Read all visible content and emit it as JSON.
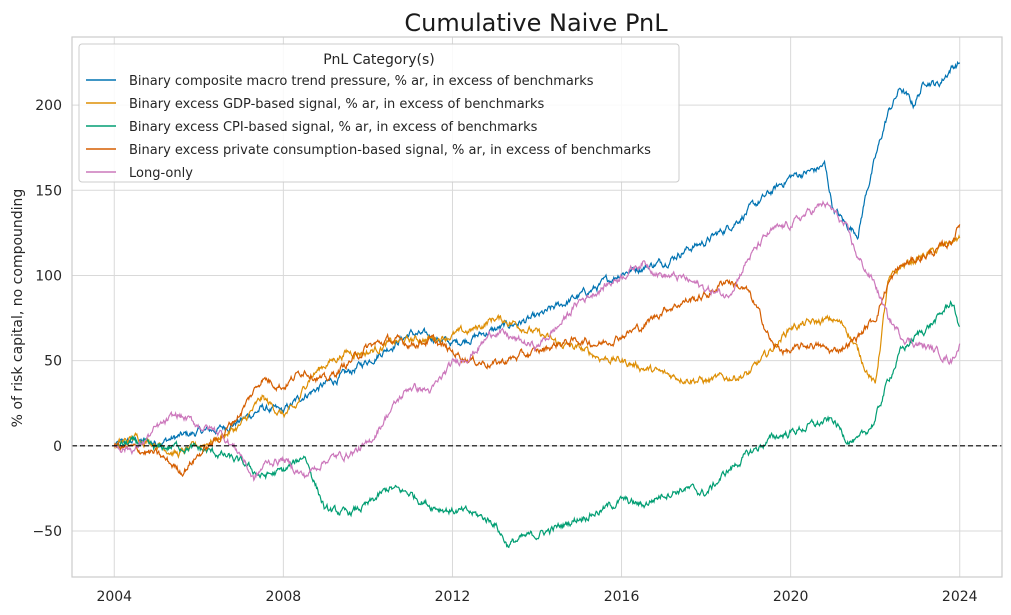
{
  "chart_data": {
    "type": "line",
    "title": "Cumulative Naive PnL",
    "xlabel": "",
    "ylabel": "% of risk capital, no compounding",
    "xlim": [
      2003.0,
      2025.0
    ],
    "ylim": [
      -77,
      240
    ],
    "x_ticks": [
      {
        "value": 2004,
        "label": "2004"
      },
      {
        "value": 2008,
        "label": "2008"
      },
      {
        "value": 2012,
        "label": "2012"
      },
      {
        "value": 2016,
        "label": "2016"
      },
      {
        "value": 2020,
        "label": "2020"
      },
      {
        "value": 2024,
        "label": "2024"
      }
    ],
    "y_ticks": [
      {
        "value": -50,
        "label": "−50"
      },
      {
        "value": 0,
        "label": "0"
      },
      {
        "value": 50,
        "label": "50"
      },
      {
        "value": 100,
        "label": "100"
      },
      {
        "value": 150,
        "label": "150"
      },
      {
        "value": 200,
        "label": "200"
      }
    ],
    "grid": true,
    "zero_line": {
      "value": 0,
      "style": "dashed",
      "color": "#000000"
    },
    "legend": {
      "title": "PnL Category(s)",
      "placement": "top-left"
    },
    "series": [
      {
        "name": "Binary composite macro trend pressure, % ar, in excess of benchmarks",
        "color": "#0173b2",
        "points": [
          [
            2004.0,
            0
          ],
          [
            2004.5,
            3
          ],
          [
            2005.0,
            2
          ],
          [
            2005.5,
            5
          ],
          [
            2006.0,
            8
          ],
          [
            2006.5,
            10
          ],
          [
            2007.0,
            15
          ],
          [
            2007.5,
            22
          ],
          [
            2008.0,
            20
          ],
          [
            2008.5,
            30
          ],
          [
            2009.0,
            36
          ],
          [
            2009.5,
            42
          ],
          [
            2010.0,
            50
          ],
          [
            2010.5,
            58
          ],
          [
            2011.0,
            66
          ],
          [
            2011.5,
            64
          ],
          [
            2012.0,
            60
          ],
          [
            2012.5,
            64
          ],
          [
            2013.0,
            68
          ],
          [
            2013.5,
            72
          ],
          [
            2014.0,
            75
          ],
          [
            2014.5,
            82
          ],
          [
            2015.0,
            88
          ],
          [
            2015.5,
            94
          ],
          [
            2016.0,
            102
          ],
          [
            2016.5,
            105
          ],
          [
            2017.0,
            108
          ],
          [
            2017.5,
            115
          ],
          [
            2018.0,
            120
          ],
          [
            2018.5,
            128
          ],
          [
            2019.0,
            138
          ],
          [
            2019.5,
            148
          ],
          [
            2020.0,
            158
          ],
          [
            2020.3,
            160
          ],
          [
            2020.6,
            162
          ],
          [
            2020.8,
            165
          ],
          [
            2021.0,
            140
          ],
          [
            2021.3,
            130
          ],
          [
            2021.6,
            125
          ],
          [
            2021.8,
            150
          ],
          [
            2022.0,
            168
          ],
          [
            2022.3,
            195
          ],
          [
            2022.6,
            210
          ],
          [
            2022.9,
            200
          ],
          [
            2023.2,
            215
          ],
          [
            2023.5,
            212
          ],
          [
            2023.8,
            222
          ],
          [
            2024.0,
            225
          ]
        ]
      },
      {
        "name": "Binary excess GDP-based signal, % ar, in excess of benchmarks",
        "color": "#de8f05",
        "points": [
          [
            2004.0,
            0
          ],
          [
            2004.5,
            5
          ],
          [
            2005.0,
            2
          ],
          [
            2005.5,
            -5
          ],
          [
            2006.0,
            0
          ],
          [
            2006.5,
            5
          ],
          [
            2007.0,
            12
          ],
          [
            2007.5,
            28
          ],
          [
            2008.0,
            18
          ],
          [
            2008.3,
            22
          ],
          [
            2008.6,
            40
          ],
          [
            2009.0,
            48
          ],
          [
            2009.5,
            55
          ],
          [
            2010.0,
            55
          ],
          [
            2010.5,
            60
          ],
          [
            2011.0,
            62
          ],
          [
            2011.5,
            63
          ],
          [
            2012.0,
            65
          ],
          [
            2012.5,
            68
          ],
          [
            2013.0,
            75
          ],
          [
            2013.5,
            72
          ],
          [
            2014.0,
            66
          ],
          [
            2014.5,
            60
          ],
          [
            2015.0,
            57
          ],
          [
            2015.5,
            52
          ],
          [
            2016.0,
            50
          ],
          [
            2016.5,
            46
          ],
          [
            2017.0,
            42
          ],
          [
            2017.5,
            40
          ],
          [
            2018.0,
            38
          ],
          [
            2018.5,
            40
          ],
          [
            2019.0,
            42
          ],
          [
            2019.5,
            55
          ],
          [
            2020.0,
            70
          ],
          [
            2020.5,
            72
          ],
          [
            2021.0,
            74
          ],
          [
            2021.3,
            70
          ],
          [
            2021.6,
            55
          ],
          [
            2021.9,
            40
          ],
          [
            2022.0,
            35
          ],
          [
            2022.3,
            95
          ],
          [
            2022.6,
            105
          ],
          [
            2023.0,
            110
          ],
          [
            2023.5,
            115
          ],
          [
            2023.8,
            120
          ],
          [
            2024.0,
            122
          ]
        ]
      },
      {
        "name": "Binary excess CPI-based signal, % ar, in excess of benchmarks",
        "color": "#029e73",
        "points": [
          [
            2004.0,
            0
          ],
          [
            2004.5,
            2
          ],
          [
            2005.0,
            -2
          ],
          [
            2005.5,
            0
          ],
          [
            2006.0,
            -2
          ],
          [
            2006.5,
            -5
          ],
          [
            2007.0,
            -10
          ],
          [
            2007.5,
            -18
          ],
          [
            2008.0,
            -15
          ],
          [
            2008.3,
            -10
          ],
          [
            2008.5,
            -5
          ],
          [
            2008.8,
            -25
          ],
          [
            2009.0,
            -38
          ],
          [
            2009.5,
            -40
          ],
          [
            2010.0,
            -35
          ],
          [
            2010.5,
            -25
          ],
          [
            2011.0,
            -28
          ],
          [
            2011.5,
            -35
          ],
          [
            2012.0,
            -38
          ],
          [
            2012.5,
            -40
          ],
          [
            2013.0,
            -45
          ],
          [
            2013.3,
            -58
          ],
          [
            2013.6,
            -55
          ],
          [
            2014.0,
            -52
          ],
          [
            2014.5,
            -48
          ],
          [
            2015.0,
            -42
          ],
          [
            2015.5,
            -38
          ],
          [
            2016.0,
            -32
          ],
          [
            2016.5,
            -35
          ],
          [
            2017.0,
            -28
          ],
          [
            2017.5,
            -25
          ],
          [
            2018.0,
            -28
          ],
          [
            2018.5,
            -15
          ],
          [
            2019.0,
            -5
          ],
          [
            2019.3,
            0
          ],
          [
            2019.6,
            5
          ],
          [
            2020.0,
            8
          ],
          [
            2020.5,
            12
          ],
          [
            2021.0,
            15
          ],
          [
            2021.3,
            5
          ],
          [
            2021.6,
            2
          ],
          [
            2022.0,
            15
          ],
          [
            2022.3,
            38
          ],
          [
            2022.6,
            55
          ],
          [
            2023.0,
            65
          ],
          [
            2023.5,
            75
          ],
          [
            2023.8,
            85
          ],
          [
            2024.0,
            70
          ]
        ]
      },
      {
        "name": "Binary excess private consumption-based signal, % ar, in excess of benchmarks",
        "color": "#d55e00",
        "points": [
          [
            2004.0,
            0
          ],
          [
            2004.5,
            -2
          ],
          [
            2005.0,
            -5
          ],
          [
            2005.3,
            -10
          ],
          [
            2005.6,
            -15
          ],
          [
            2006.0,
            -5
          ],
          [
            2006.5,
            5
          ],
          [
            2007.0,
            20
          ],
          [
            2007.5,
            40
          ],
          [
            2008.0,
            35
          ],
          [
            2008.5,
            45
          ],
          [
            2009.0,
            38
          ],
          [
            2009.5,
            48
          ],
          [
            2010.0,
            58
          ],
          [
            2010.5,
            62
          ],
          [
            2011.0,
            60
          ],
          [
            2011.5,
            62
          ],
          [
            2012.0,
            55
          ],
          [
            2012.5,
            50
          ],
          [
            2013.0,
            48
          ],
          [
            2013.5,
            52
          ],
          [
            2014.0,
            55
          ],
          [
            2014.5,
            60
          ],
          [
            2015.0,
            62
          ],
          [
            2015.5,
            60
          ],
          [
            2016.0,
            65
          ],
          [
            2016.5,
            70
          ],
          [
            2017.0,
            80
          ],
          [
            2017.5,
            85
          ],
          [
            2018.0,
            88
          ],
          [
            2018.5,
            98
          ],
          [
            2019.0,
            90
          ],
          [
            2019.3,
            75
          ],
          [
            2019.6,
            58
          ],
          [
            2020.0,
            55
          ],
          [
            2020.5,
            60
          ],
          [
            2021.0,
            55
          ],
          [
            2021.5,
            62
          ],
          [
            2022.0,
            75
          ],
          [
            2022.3,
            95
          ],
          [
            2022.6,
            105
          ],
          [
            2023.0,
            110
          ],
          [
            2023.5,
            115
          ],
          [
            2023.8,
            120
          ],
          [
            2024.0,
            130
          ]
        ]
      },
      {
        "name": "Long-only",
        "color": "#cc78bc",
        "points": [
          [
            2004.0,
            0
          ],
          [
            2004.5,
            -2
          ],
          [
            2005.0,
            10
          ],
          [
            2005.5,
            18
          ],
          [
            2006.0,
            12
          ],
          [
            2006.5,
            8
          ],
          [
            2007.0,
            -5
          ],
          [
            2007.3,
            -20
          ],
          [
            2007.6,
            -10
          ],
          [
            2008.0,
            -8
          ],
          [
            2008.5,
            -18
          ],
          [
            2009.0,
            -8
          ],
          [
            2009.5,
            -5
          ],
          [
            2010.0,
            0
          ],
          [
            2010.5,
            20
          ],
          [
            2011.0,
            35
          ],
          [
            2011.5,
            32
          ],
          [
            2012.0,
            48
          ],
          [
            2012.5,
            55
          ],
          [
            2013.0,
            68
          ],
          [
            2013.5,
            62
          ],
          [
            2014.0,
            58
          ],
          [
            2014.5,
            70
          ],
          [
            2015.0,
            85
          ],
          [
            2015.5,
            92
          ],
          [
            2016.0,
            100
          ],
          [
            2016.5,
            108
          ],
          [
            2017.0,
            100
          ],
          [
            2017.5,
            98
          ],
          [
            2018.0,
            92
          ],
          [
            2018.5,
            88
          ],
          [
            2019.0,
            110
          ],
          [
            2019.5,
            125
          ],
          [
            2020.0,
            130
          ],
          [
            2020.5,
            138
          ],
          [
            2020.8,
            142
          ],
          [
            2021.0,
            138
          ],
          [
            2021.3,
            128
          ],
          [
            2021.6,
            110
          ],
          [
            2022.0,
            95
          ],
          [
            2022.3,
            75
          ],
          [
            2022.6,
            65
          ],
          [
            2023.0,
            60
          ],
          [
            2023.5,
            55
          ],
          [
            2023.8,
            50
          ],
          [
            2024.0,
            60
          ]
        ]
      }
    ]
  }
}
